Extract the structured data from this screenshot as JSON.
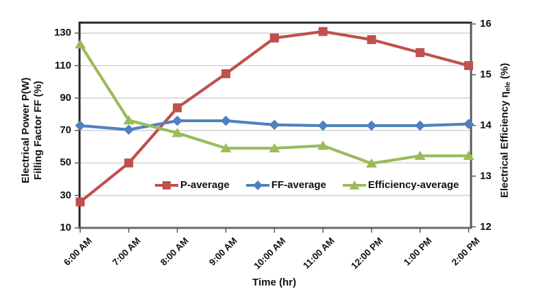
{
  "chart_data": {
    "type": "line",
    "title": "",
    "categories": [
      "6:00 AM",
      "7:00 AM",
      "8:00 AM",
      "9:00 AM",
      "10:00 AM",
      "11:00 AM",
      "12:00 PM",
      "1:00 PM",
      "2:00 PM"
    ],
    "series": [
      {
        "name": "P-average",
        "axis": "left",
        "color": "#C0504D",
        "marker": "square",
        "values": [
          26,
          50,
          84,
          105,
          127,
          131,
          126,
          118,
          110
        ]
      },
      {
        "name": "FF-average",
        "axis": "left",
        "color": "#4F81BD",
        "marker": "diamond",
        "values": [
          73,
          70.5,
          76,
          76,
          73.5,
          73,
          73,
          73,
          74
        ]
      },
      {
        "name": "Efficiency-average",
        "axis": "right",
        "color": "#9BBB59",
        "marker": "triangle",
        "values": [
          15.6,
          14.1,
          13.85,
          13.55,
          13.55,
          13.6,
          13.25,
          13.4,
          13.4
        ]
      }
    ],
    "left_axis": {
      "title_line1": "Electrical Power P(W)",
      "title_line2": "Filling Factor  FF (%)",
      "ticks": [
        10,
        30,
        50,
        70,
        90,
        110,
        130
      ],
      "range": [
        10,
        130
      ]
    },
    "right_axis": {
      "title_main": "Electrical Efficiency η",
      "title_sub": "ele",
      "title_tail": " (%)",
      "ticks": [
        12,
        13,
        14,
        15,
        16
      ],
      "range": [
        12,
        16
      ]
    },
    "x_axis": {
      "title": "Time (hr)"
    },
    "legend": {
      "position": "inside-bottom-center"
    },
    "grid": "horizontal",
    "colors": {
      "gridline": "#C9C9C9",
      "axis_dark": "#262626",
      "axis_gray": "#595959",
      "text": "#111111",
      "background": "#FFFFFF"
    }
  }
}
